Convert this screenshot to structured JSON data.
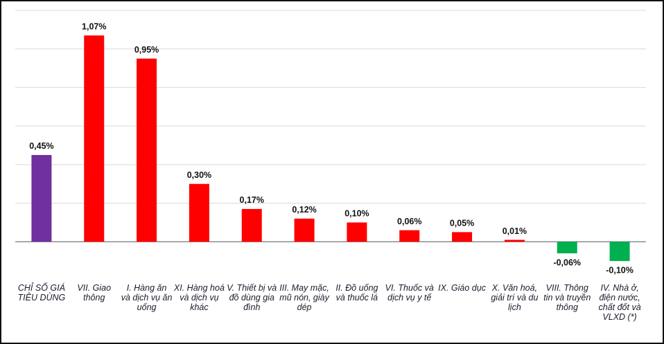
{
  "chart_data": {
    "type": "bar",
    "categories": [
      "CHỈ SỐ GIÁ TIÊU DÙNG",
      "VII. Giao thông",
      "I. Hàng ăn và dịch vụ ăn uống",
      "XI. Hàng hoá và dịch vụ khác",
      "V. Thiết bị và đồ dùng gia đình",
      "III. May mặc, mũ nón, giày dép",
      "II. Đồ uống và thuốc lá",
      "VI. Thuốc và dịch vụ y tế",
      "IX. Giáo dục",
      "X. Văn hoá, giải trí và du lịch",
      "VIII. Thông tin và truyền thông",
      "IV. Nhà ở, điện nước, chất đốt và VLXD (*)"
    ],
    "values": [
      0.45,
      1.07,
      0.95,
      0.3,
      0.17,
      0.12,
      0.1,
      0.06,
      0.05,
      0.01,
      -0.06,
      -0.1
    ],
    "value_labels": [
      "0,45%",
      "1,07%",
      "0,95%",
      "0,30%",
      "0,17%",
      "0,12%",
      "0,10%",
      "0,06%",
      "0,05%",
      "0,01%",
      "-0,06%",
      "-0,10%"
    ],
    "colors": [
      "#7030a0",
      "#ff0000",
      "#ff0000",
      "#ff0000",
      "#ff0000",
      "#ff0000",
      "#ff0000",
      "#ff0000",
      "#ff0000",
      "#ff0000",
      "#00b050",
      "#00b050"
    ],
    "ylim": [
      -0.2,
      1.2
    ],
    "yticks": [
      0,
      0.2,
      0.4,
      0.6,
      0.8,
      1.0,
      1.2
    ],
    "grid": true
  }
}
